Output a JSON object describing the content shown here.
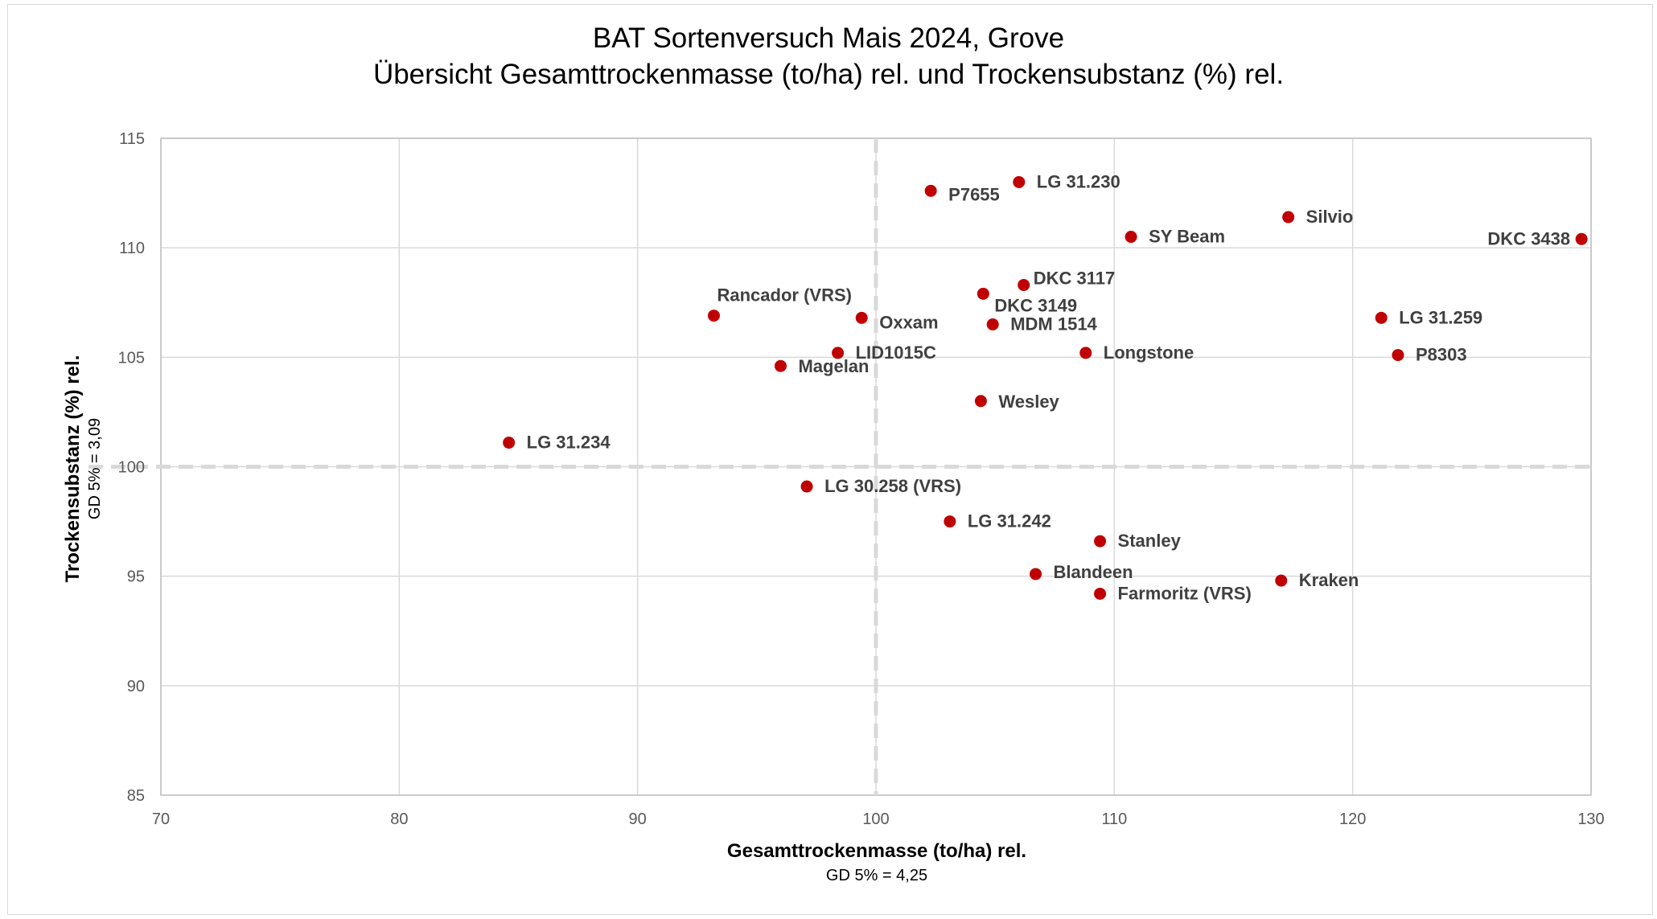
{
  "chart_data": {
    "type": "scatter",
    "title": "BAT Sortenversuch Mais 2024, Grove",
    "subtitle": "Übersicht Gesamttrockenmasse (to/ha) rel. und Trockensubstanz (%) rel.",
    "xlabel": "Gesamttrockenmasse (to/ha) rel.",
    "xlabel_note": "GD 5% = 4,25",
    "ylabel": "Trockensubstanz (%) rel.",
    "ylabel_note": "GD 5% = 3,09",
    "xlim": [
      70,
      130
    ],
    "ylim": [
      85,
      115
    ],
    "x_ticks": [
      70,
      80,
      90,
      100,
      110,
      120,
      130
    ],
    "y_ticks": [
      85,
      90,
      95,
      100,
      105,
      110,
      115
    ],
    "grid": true,
    "reference_lines": {
      "x": 100,
      "y": 100,
      "style": "dashed"
    },
    "marker_color": "#c00000",
    "points": [
      {
        "label": "P7655",
        "x": 102.3,
        "y": 112.6
      },
      {
        "label": "LG 31.230",
        "x": 106.0,
        "y": 113.0
      },
      {
        "label": "Silvio",
        "x": 117.3,
        "y": 111.4
      },
      {
        "label": "SY Beam",
        "x": 110.7,
        "y": 110.5
      },
      {
        "label": "DKC 3438",
        "x": 129.6,
        "y": 110.4
      },
      {
        "label": "DKC 3117",
        "x": 106.2,
        "y": 108.3
      },
      {
        "label": "DKC 3149",
        "x": 104.5,
        "y": 107.9
      },
      {
        "label": "Rancador (VRS)",
        "x": 93.2,
        "y": 106.9
      },
      {
        "label": "Oxxam",
        "x": 99.4,
        "y": 106.8
      },
      {
        "label": "MDM 1514",
        "x": 104.9,
        "y": 106.5
      },
      {
        "label": "LG 31.259",
        "x": 121.2,
        "y": 106.8
      },
      {
        "label": "LID1015C",
        "x": 98.4,
        "y": 105.2
      },
      {
        "label": "Longstone",
        "x": 108.8,
        "y": 105.2
      },
      {
        "label": "P8303",
        "x": 121.9,
        "y": 105.1
      },
      {
        "label": "Magelan",
        "x": 96.0,
        "y": 104.6
      },
      {
        "label": "Wesley",
        "x": 104.4,
        "y": 103.0
      },
      {
        "label": "LG 31.234",
        "x": 84.6,
        "y": 101.1
      },
      {
        "label": "LG 30.258 (VRS)",
        "x": 97.1,
        "y": 99.1
      },
      {
        "label": "LG 31.242",
        "x": 103.1,
        "y": 97.5
      },
      {
        "label": "Stanley",
        "x": 109.4,
        "y": 96.6
      },
      {
        "label": "Blandeen",
        "x": 106.7,
        "y": 95.1
      },
      {
        "label": "Kraken",
        "x": 117.0,
        "y": 94.8
      },
      {
        "label": "Farmoritz (VRS)",
        "x": 109.4,
        "y": 94.2
      }
    ]
  }
}
